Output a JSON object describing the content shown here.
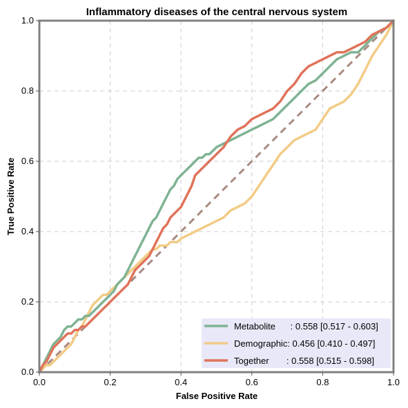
{
  "colors": {
    "metabolite": "#7fb393",
    "demographic": "#f2cb85",
    "together": "#e0735a",
    "diagonal": "#a88a82",
    "legend_bg": "#e8e8f8",
    "frame": "#808080",
    "grid": "#cccccc"
  },
  "chart_data": {
    "type": "line",
    "title": "Inflammatory diseases of the central nervous system",
    "xlabel": "False Positive Rate",
    "ylabel": "True Positive Rate",
    "xlim": [
      0,
      1
    ],
    "ylim": [
      0,
      1
    ],
    "xticks": [
      "0.0",
      "0.2",
      "0.4",
      "0.6",
      "0.8",
      "1.0"
    ],
    "yticks": [
      "0.0",
      "0.2",
      "0.4",
      "0.6",
      "0.8",
      "1.0"
    ],
    "grid": true,
    "legend_position": "bottom-right",
    "series": [
      {
        "name": "Metabolite",
        "label": "Metabolite      : 0.558 [0.517 - 0.603]",
        "color_key": "metabolite",
        "x": [
          0,
          0.01,
          0.02,
          0.03,
          0.04,
          0.05,
          0.06,
          0.07,
          0.08,
          0.09,
          0.1,
          0.11,
          0.12,
          0.13,
          0.14,
          0.15,
          0.16,
          0.17,
          0.18,
          0.19,
          0.2,
          0.21,
          0.22,
          0.23,
          0.24,
          0.25,
          0.26,
          0.27,
          0.28,
          0.29,
          0.3,
          0.31,
          0.32,
          0.33,
          0.34,
          0.35,
          0.36,
          0.37,
          0.38,
          0.39,
          0.4,
          0.41,
          0.42,
          0.43,
          0.44,
          0.45,
          0.46,
          0.47,
          0.48,
          0.49,
          0.5,
          0.52,
          0.54,
          0.56,
          0.58,
          0.6,
          0.62,
          0.64,
          0.66,
          0.68,
          0.7,
          0.72,
          0.74,
          0.76,
          0.78,
          0.8,
          0.82,
          0.84,
          0.86,
          0.88,
          0.9,
          0.92,
          0.94,
          0.96,
          0.98,
          1.0
        ],
        "y": [
          0,
          0.02,
          0.04,
          0.06,
          0.08,
          0.09,
          0.1,
          0.12,
          0.13,
          0.13,
          0.14,
          0.15,
          0.15,
          0.16,
          0.16,
          0.17,
          0.18,
          0.19,
          0.2,
          0.21,
          0.22,
          0.23,
          0.25,
          0.26,
          0.27,
          0.29,
          0.31,
          0.33,
          0.35,
          0.37,
          0.39,
          0.41,
          0.43,
          0.44,
          0.46,
          0.48,
          0.5,
          0.52,
          0.53,
          0.55,
          0.56,
          0.57,
          0.58,
          0.59,
          0.6,
          0.61,
          0.61,
          0.62,
          0.62,
          0.63,
          0.64,
          0.65,
          0.66,
          0.67,
          0.68,
          0.69,
          0.7,
          0.71,
          0.72,
          0.74,
          0.76,
          0.78,
          0.8,
          0.82,
          0.83,
          0.85,
          0.87,
          0.89,
          0.9,
          0.91,
          0.91,
          0.93,
          0.95,
          0.97,
          0.98,
          1.0
        ]
      },
      {
        "name": "Demographic",
        "label": "Demographic: 0.456 [0.410 - 0.497]",
        "color_key": "demographic",
        "x": [
          0,
          0.01,
          0.02,
          0.03,
          0.04,
          0.05,
          0.06,
          0.07,
          0.08,
          0.09,
          0.1,
          0.11,
          0.12,
          0.13,
          0.14,
          0.15,
          0.16,
          0.17,
          0.18,
          0.19,
          0.2,
          0.21,
          0.22,
          0.23,
          0.24,
          0.25,
          0.26,
          0.27,
          0.28,
          0.29,
          0.3,
          0.31,
          0.32,
          0.33,
          0.34,
          0.35,
          0.36,
          0.37,
          0.38,
          0.39,
          0.4,
          0.42,
          0.44,
          0.46,
          0.48,
          0.5,
          0.52,
          0.54,
          0.56,
          0.58,
          0.6,
          0.62,
          0.64,
          0.66,
          0.68,
          0.7,
          0.72,
          0.74,
          0.76,
          0.78,
          0.8,
          0.82,
          0.84,
          0.86,
          0.88,
          0.9,
          0.92,
          0.94,
          0.96,
          0.98,
          1.0
        ],
        "y": [
          0,
          0.01,
          0.02,
          0.02,
          0.03,
          0.04,
          0.05,
          0.06,
          0.07,
          0.08,
          0.1,
          0.12,
          0.13,
          0.15,
          0.17,
          0.19,
          0.2,
          0.21,
          0.22,
          0.22,
          0.23,
          0.24,
          0.25,
          0.26,
          0.27,
          0.28,
          0.29,
          0.3,
          0.31,
          0.32,
          0.33,
          0.34,
          0.35,
          0.35,
          0.36,
          0.36,
          0.36,
          0.37,
          0.37,
          0.37,
          0.38,
          0.39,
          0.4,
          0.41,
          0.42,
          0.43,
          0.44,
          0.46,
          0.47,
          0.48,
          0.5,
          0.53,
          0.56,
          0.59,
          0.62,
          0.64,
          0.66,
          0.67,
          0.68,
          0.69,
          0.72,
          0.75,
          0.76,
          0.77,
          0.79,
          0.82,
          0.86,
          0.9,
          0.93,
          0.96,
          1.0
        ]
      },
      {
        "name": "Together",
        "label": "Together       : 0.558 [0.515 - 0.598]",
        "color_key": "together",
        "x": [
          0,
          0.01,
          0.02,
          0.03,
          0.04,
          0.05,
          0.06,
          0.07,
          0.08,
          0.09,
          0.1,
          0.11,
          0.12,
          0.13,
          0.14,
          0.15,
          0.16,
          0.17,
          0.18,
          0.19,
          0.2,
          0.21,
          0.22,
          0.23,
          0.24,
          0.25,
          0.26,
          0.27,
          0.28,
          0.29,
          0.3,
          0.31,
          0.32,
          0.33,
          0.34,
          0.35,
          0.36,
          0.37,
          0.38,
          0.39,
          0.4,
          0.41,
          0.42,
          0.43,
          0.44,
          0.45,
          0.46,
          0.47,
          0.48,
          0.49,
          0.5,
          0.52,
          0.54,
          0.56,
          0.58,
          0.6,
          0.62,
          0.64,
          0.66,
          0.68,
          0.7,
          0.72,
          0.74,
          0.76,
          0.78,
          0.8,
          0.82,
          0.84,
          0.86,
          0.88,
          0.9,
          0.92,
          0.94,
          0.96,
          0.98,
          1.0
        ],
        "y": [
          0,
          0.02,
          0.03,
          0.05,
          0.07,
          0.08,
          0.09,
          0.1,
          0.11,
          0.11,
          0.12,
          0.12,
          0.13,
          0.13,
          0.14,
          0.15,
          0.16,
          0.17,
          0.18,
          0.19,
          0.2,
          0.21,
          0.22,
          0.23,
          0.24,
          0.25,
          0.27,
          0.29,
          0.3,
          0.31,
          0.32,
          0.33,
          0.35,
          0.37,
          0.39,
          0.41,
          0.42,
          0.44,
          0.45,
          0.46,
          0.47,
          0.49,
          0.51,
          0.53,
          0.56,
          0.57,
          0.58,
          0.59,
          0.6,
          0.61,
          0.62,
          0.64,
          0.67,
          0.69,
          0.7,
          0.72,
          0.73,
          0.74,
          0.75,
          0.77,
          0.8,
          0.82,
          0.85,
          0.87,
          0.88,
          0.89,
          0.9,
          0.91,
          0.91,
          0.92,
          0.93,
          0.94,
          0.96,
          0.97,
          0.98,
          1.0
        ]
      }
    ],
    "reference_line": {
      "x": [
        0,
        1
      ],
      "y": [
        0,
        1
      ],
      "style": "dashed"
    }
  }
}
